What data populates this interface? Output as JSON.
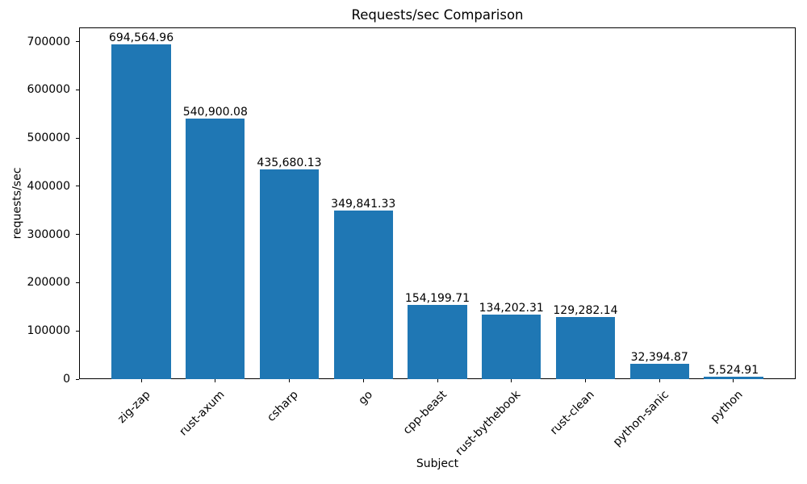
{
  "chart_data": {
    "type": "bar",
    "title": "Requests/sec Comparison",
    "xlabel": "Subject",
    "ylabel": "requests/sec",
    "categories": [
      "zig-zap",
      "rust-axum",
      "csharp",
      "go",
      "cpp-beast",
      "rust-bythebook",
      "rust-clean",
      "python-sanic",
      "python"
    ],
    "values": [
      694564.96,
      540900.08,
      435680.13,
      349841.33,
      154199.71,
      134202.31,
      129282.14,
      32394.87,
      5524.91
    ],
    "value_labels": [
      "694,564.96",
      "540,900.08",
      "435,680.13",
      "349,841.33",
      "154,199.71",
      "134,202.31",
      "129,282.14",
      "32,394.87",
      "5,524.91"
    ],
    "yticks": [
      0,
      100000,
      200000,
      300000,
      400000,
      500000,
      600000,
      700000
    ],
    "ytick_labels": [
      "0",
      "100000",
      "200000",
      "300000",
      "400000",
      "500000",
      "600000",
      "700000"
    ],
    "ylim": [
      0,
      729293
    ],
    "bar_color": "#1f77b4",
    "grid": false,
    "legend": "none",
    "x_tick_rotation": 45
  }
}
